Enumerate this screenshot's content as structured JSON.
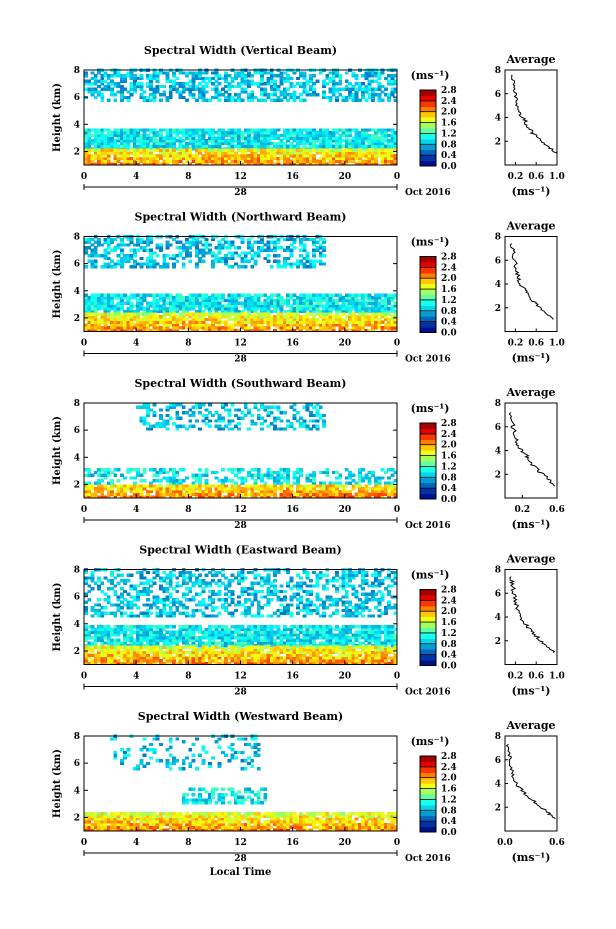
{
  "figure": {
    "x_label": "Local Time",
    "date_label": "Oct 2016",
    "day_label": "28",
    "y_label": "Height (km)",
    "colorbar_unit": "(ms⁻¹)",
    "average_title": "Average",
    "average_xlabel": "(ms⁻¹)"
  },
  "chart_data": [
    {
      "type": "heatmap",
      "title": "Spectral Width (Vertical Beam)",
      "xlim": [
        0,
        24
      ],
      "x_ticks": [
        "0",
        "4",
        "8",
        "12",
        "16",
        "20",
        "0"
      ],
      "ylim": [
        1,
        8
      ],
      "y_ticks": [
        "2",
        "4",
        "6",
        "8"
      ],
      "colorbar": {
        "range": [
          0,
          2.8
        ],
        "ticks": [
          "0.0",
          "0.4",
          "0.8",
          "1.2",
          "1.6",
          "2.0",
          "2.4",
          "2.8"
        ]
      },
      "data_bands": [
        {
          "t": [
            0,
            24
          ],
          "h": [
            5.7,
            8.0
          ],
          "v": 0.3,
          "d": 0.55
        },
        {
          "t": [
            0,
            24
          ],
          "h": [
            2.1,
            3.6
          ],
          "v": 0.35,
          "d": 0.9
        },
        {
          "t": [
            0,
            24
          ],
          "h": [
            1.0,
            2.1
          ],
          "v": 0.55,
          "d": 0.9
        }
      ],
      "average": {
        "xlim": [
          0.0,
          1.0
        ],
        "x_ticks": [
          "0.2",
          "0.6",
          "1.0"
        ],
        "ylim": [
          0,
          8
        ],
        "y_ticks": [
          "2",
          "4",
          "6",
          "8"
        ],
        "profile": [
          [
            0.98,
            1.0
          ],
          [
            0.85,
            1.5
          ],
          [
            0.7,
            2.0
          ],
          [
            0.55,
            2.6
          ],
          [
            0.45,
            3.1
          ],
          [
            0.4,
            3.6
          ],
          [
            0.3,
            4.2
          ],
          [
            0.25,
            4.8
          ],
          [
            0.2,
            5.5
          ],
          [
            0.18,
            6.3
          ],
          [
            0.15,
            7.0
          ],
          [
            0.14,
            7.6
          ]
        ]
      }
    },
    {
      "type": "heatmap",
      "title": "Spectral Width (Northward Beam)",
      "xlim": [
        0,
        24
      ],
      "x_ticks": [
        "0",
        "4",
        "8",
        "12",
        "16",
        "20",
        "0"
      ],
      "ylim": [
        1,
        8
      ],
      "y_ticks": [
        "2",
        "4",
        "6",
        "8"
      ],
      "colorbar": {
        "range": [
          0,
          2.8
        ],
        "ticks": [
          "0.0",
          "0.4",
          "0.8",
          "1.2",
          "1.6",
          "2.0",
          "2.4",
          "2.8"
        ]
      },
      "data_bands": [
        {
          "t": [
            0,
            18.5
          ],
          "h": [
            5.7,
            8.0
          ],
          "v": 0.3,
          "d": 0.5
        },
        {
          "t": [
            0,
            24
          ],
          "h": [
            2.4,
            3.8
          ],
          "v": 0.35,
          "d": 0.85
        },
        {
          "t": [
            0,
            24
          ],
          "h": [
            1.0,
            2.4
          ],
          "v": 0.55,
          "d": 0.9
        }
      ],
      "average": {
        "xlim": [
          0.0,
          1.0
        ],
        "x_ticks": [
          "0.2",
          "0.6",
          "1.0"
        ],
        "ylim": [
          0,
          8
        ],
        "y_ticks": [
          "2",
          "4",
          "6",
          "8"
        ],
        "profile": [
          [
            0.95,
            1.0
          ],
          [
            0.8,
            1.6
          ],
          [
            0.6,
            2.3
          ],
          [
            0.5,
            2.8
          ],
          [
            0.42,
            3.3
          ],
          [
            0.3,
            3.9
          ],
          [
            0.25,
            4.5
          ],
          [
            0.22,
            5.2
          ],
          [
            0.18,
            6.0
          ],
          [
            0.15,
            6.8
          ],
          [
            0.13,
            7.4
          ]
        ]
      }
    },
    {
      "type": "heatmap",
      "title": "Spectral Width (Southward Beam)",
      "xlim": [
        0,
        24
      ],
      "x_ticks": [
        "0",
        "4",
        "8",
        "12",
        "16",
        "20",
        "0"
      ],
      "ylim": [
        1,
        8
      ],
      "y_ticks": [
        "2",
        "4",
        "6",
        "8"
      ],
      "colorbar": {
        "range": [
          0,
          2.8
        ],
        "ticks": [
          "0.0",
          "0.4",
          "0.8",
          "1.2",
          "1.6",
          "2.0",
          "2.4",
          "2.8"
        ]
      },
      "data_bands": [
        {
          "t": [
            4,
            18.5
          ],
          "h": [
            6.0,
            8.0
          ],
          "v": 0.3,
          "d": 0.3
        },
        {
          "t": [
            0,
            24
          ],
          "h": [
            2.0,
            3.2
          ],
          "v": 0.35,
          "d": 0.4
        },
        {
          "t": [
            0,
            24
          ],
          "h": [
            1.0,
            2.0
          ],
          "v": 0.55,
          "d": 0.85
        }
      ],
      "average": {
        "xlim": [
          0.0,
          0.6
        ],
        "x_ticks": [
          "0.2",
          "0.6"
        ],
        "ylim": [
          0,
          8
        ],
        "y_ticks": [
          "2",
          "4",
          "6",
          "8"
        ],
        "profile": [
          [
            0.58,
            1.0
          ],
          [
            0.5,
            1.6
          ],
          [
            0.4,
            2.2
          ],
          [
            0.32,
            2.8
          ],
          [
            0.28,
            3.3
          ],
          [
            0.22,
            3.8
          ],
          [
            0.15,
            4.4
          ],
          [
            0.12,
            5.0
          ],
          [
            0.1,
            5.8
          ],
          [
            0.08,
            6.5
          ],
          [
            0.07,
            7.2
          ]
        ]
      }
    },
    {
      "type": "heatmap",
      "title": "Spectral Width (Eastward Beam)",
      "xlim": [
        0,
        24
      ],
      "x_ticks": [
        "0",
        "4",
        "8",
        "12",
        "16",
        "20",
        "0"
      ],
      "ylim": [
        1,
        8
      ],
      "y_ticks": [
        "2",
        "4",
        "6",
        "8"
      ],
      "colorbar": {
        "range": [
          0,
          2.8
        ],
        "ticks": [
          "0.0",
          "0.4",
          "0.8",
          "1.2",
          "1.6",
          "2.0",
          "2.4",
          "2.8"
        ]
      },
      "data_bands": [
        {
          "t": [
            0,
            24
          ],
          "h": [
            4.5,
            8.0
          ],
          "v": 0.3,
          "d": 0.45
        },
        {
          "t": [
            0,
            24
          ],
          "h": [
            2.3,
            3.8
          ],
          "v": 0.35,
          "d": 0.85
        },
        {
          "t": [
            0,
            24
          ],
          "h": [
            1.0,
            2.3
          ],
          "v": 0.55,
          "d": 0.9
        }
      ],
      "average": {
        "xlim": [
          0.0,
          1.0
        ],
        "x_ticks": [
          "0.2",
          "0.6",
          "1.0"
        ],
        "ylim": [
          0,
          8
        ],
        "y_ticks": [
          "2",
          "4",
          "6",
          "8"
        ],
        "profile": [
          [
            0.95,
            1.0
          ],
          [
            0.8,
            1.6
          ],
          [
            0.65,
            2.2
          ],
          [
            0.5,
            2.8
          ],
          [
            0.42,
            3.3
          ],
          [
            0.3,
            3.9
          ],
          [
            0.25,
            4.5
          ],
          [
            0.2,
            5.2
          ],
          [
            0.17,
            6.0
          ],
          [
            0.14,
            6.8
          ],
          [
            0.12,
            7.4
          ]
        ]
      }
    },
    {
      "type": "heatmap",
      "title": "Spectral Width (Westward Beam)",
      "xlim": [
        0,
        24
      ],
      "x_ticks": [
        "0",
        "4",
        "8",
        "12",
        "16",
        "20",
        "0"
      ],
      "ylim": [
        1,
        8
      ],
      "y_ticks": [
        "2",
        "4",
        "6",
        "8"
      ],
      "colorbar": {
        "range": [
          0,
          2.8
        ],
        "ticks": [
          "0.0",
          "0.4",
          "0.8",
          "1.2",
          "1.6",
          "2.0",
          "2.4",
          "2.8"
        ]
      },
      "data_bands": [
        {
          "t": [
            2,
            13.5
          ],
          "h": [
            5.5,
            8.0
          ],
          "v": 0.3,
          "d": 0.18
        },
        {
          "t": [
            7.5,
            14
          ],
          "h": [
            3.0,
            4.2
          ],
          "v": 0.35,
          "d": 0.6
        },
        {
          "t": [
            0,
            24
          ],
          "h": [
            1.0,
            2.4
          ],
          "v": 0.55,
          "d": 0.9
        }
      ],
      "average": {
        "xlim": [
          0.0,
          0.6
        ],
        "x_ticks": [
          "0.0",
          "0.6"
        ],
        "ylim": [
          0,
          8
        ],
        "y_ticks": [
          "2",
          "4",
          "6",
          "8"
        ],
        "profile": [
          [
            0.58,
            1.0
          ],
          [
            0.5,
            1.5
          ],
          [
            0.4,
            2.1
          ],
          [
            0.3,
            2.7
          ],
          [
            0.22,
            3.2
          ],
          [
            0.15,
            3.8
          ],
          [
            0.1,
            4.5
          ],
          [
            0.08,
            5.2
          ],
          [
            0.06,
            5.9
          ],
          [
            0.05,
            6.6
          ],
          [
            0.04,
            7.3
          ]
        ]
      }
    }
  ]
}
